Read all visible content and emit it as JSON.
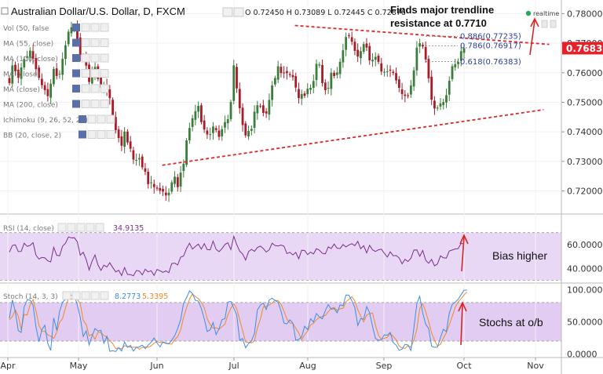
{
  "header": {
    "symbol_title": "Australian Dollar/U.S. Dollar, D, FXCM",
    "ohlc": "O 0.72450 H 0.73089 L 0.72445 C 0.72876",
    "realtime_label": "realtime"
  },
  "indicators": [
    "Vol (50, false",
    "MA (55, close)",
    "MA (100, close)",
    "MA (close)",
    "MA (close)",
    "MA (200, close)",
    "Ichimoku (9, 26, 52, 26)",
    "BB (20, close, 2)"
  ],
  "annotations": {
    "trendline_note": "Finds major trendline\nresistance at 0.7710",
    "rsi_note": "Bias higher",
    "stoch_note": "Stochs at o/b"
  },
  "colors": {
    "up": "#3c7d3c",
    "down": "#a81c2a",
    "trendline": "#e02828",
    "rsi_line": "#7b2f8f",
    "rsi_band": "#e9d8f5",
    "stoch_k": "#3d8ee0",
    "stoch_d": "#f08a24",
    "stoch_band": "#e3ccf2",
    "fib_text": "#2a3f9a",
    "price_tag": "#e8202a",
    "realtime_dot": "#26a65b"
  },
  "chart_data": [
    {
      "type": "candlestick",
      "title": "Australian Dollar/U.S. Dollar, D, FXCM",
      "x_ticks": [
        "Apr",
        "May",
        "Jun",
        "Jul",
        "Aug",
        "Sep",
        "Oct",
        "Nov"
      ],
      "y_ticks": [
        "0.78000",
        "0.77000",
        "0.76000",
        "0.75000",
        "0.74000",
        "0.73000",
        "0.72000"
      ],
      "ylim": [
        0.7135,
        0.7825
      ],
      "last_price": "0.76833",
      "closes": [
        0.7565,
        0.7625,
        0.7605,
        0.7583,
        0.7618,
        0.7647,
        0.7656,
        0.7675,
        0.7648,
        0.7612,
        0.7583,
        0.7558,
        0.7541,
        0.7521,
        0.7563,
        0.7613,
        0.7589,
        0.7597,
        0.7647,
        0.7693,
        0.7739,
        0.7754,
        0.7753,
        0.7714,
        0.7661,
        0.7653,
        0.7624,
        0.7569,
        0.7599,
        0.762,
        0.7579,
        0.7549,
        0.7558,
        0.754,
        0.7514,
        0.7452,
        0.7406,
        0.7379,
        0.7353,
        0.7401,
        0.7364,
        0.7343,
        0.7306,
        0.7305,
        0.7311,
        0.728,
        0.7265,
        0.7223,
        0.7229,
        0.7213,
        0.7208,
        0.7201,
        0.7198,
        0.7185,
        0.7194,
        0.7229,
        0.7248,
        0.7213,
        0.7262,
        0.7292,
        0.7371,
        0.7413,
        0.7446,
        0.747,
        0.7488,
        0.7433,
        0.7408,
        0.7391,
        0.7392,
        0.7418,
        0.7406,
        0.7383,
        0.7409,
        0.7433,
        0.7443,
        0.7501,
        0.7625,
        0.7547,
        0.748,
        0.7423,
        0.7388,
        0.7403,
        0.741,
        0.7468,
        0.749,
        0.7488,
        0.7464,
        0.7462,
        0.7508,
        0.7557,
        0.7582,
        0.7622,
        0.7599,
        0.76,
        0.7599,
        0.7592,
        0.7585,
        0.755,
        0.7514,
        0.7528,
        0.7522,
        0.7546,
        0.7549,
        0.7572,
        0.763,
        0.7628,
        0.7565,
        0.7541,
        0.7549,
        0.76,
        0.7589,
        0.7601,
        0.7637,
        0.7676,
        0.7721,
        0.7724,
        0.7705,
        0.7674,
        0.7655,
        0.7673,
        0.7697,
        0.7685,
        0.7642,
        0.7644,
        0.7654,
        0.7637,
        0.7604,
        0.7603,
        0.7605,
        0.7607,
        0.7599,
        0.7574,
        0.7549,
        0.7528,
        0.7522,
        0.7521,
        0.7557,
        0.7608,
        0.7685,
        0.77,
        0.7689,
        0.7645,
        0.7581,
        0.7509,
        0.7479,
        0.7482,
        0.7496,
        0.7501,
        0.7524,
        0.7573,
        0.7622,
        0.7629,
        0.7637,
        0.7673,
        0.7683
      ],
      "fib_levels": [
        {
          "label": "0.886(0.77235)",
          "price": 0.77235
        },
        {
          "label": "0.786(0.76917)",
          "price": 0.76917
        },
        {
          "label": "0.618(0.76383)",
          "price": 0.76383
        }
      ],
      "trendlines": [
        {
          "name": "resistance",
          "from": [
            0.525,
            0.776
          ],
          "to": [
            0.985,
            0.7696
          ]
        },
        {
          "name": "support",
          "from": [
            0.285,
            0.7287
          ],
          "to": [
            0.975,
            0.7475
          ]
        }
      ]
    },
    {
      "type": "line",
      "title": "RSI (14, close)",
      "value_label": "34.9135",
      "y_ticks": [
        "60.0000",
        "40.0000"
      ],
      "ylim": [
        29,
        81
      ],
      "overbought": 70,
      "oversold": 30,
      "values": [
        53.7,
        59.3,
        59.8,
        54.1,
        54.2,
        61.1,
        58.5,
        59.3,
        61.6,
        51.1,
        47.8,
        49.2,
        48.8,
        46.3,
        45.4,
        57.7,
        51.0,
        50.5,
        58.6,
        61.1,
        66.4,
        65.6,
        65.7,
        62.3,
        51.1,
        53.5,
        47.4,
        38.7,
        46.1,
        51.3,
        42.8,
        38.3,
        42.7,
        41.1,
        44.7,
        40.7,
        37.1,
        38.4,
        34.0,
        40.7,
        34.9,
        34.8,
        33.8,
        38.2,
        37.8,
        34.5,
        39.3,
        37.0,
        38.1,
        34.1,
        39.1,
        38.0,
        36.7,
        37.9,
        36.4,
        44.1,
        44.4,
        42.9,
        49.4,
        50.4,
        56.7,
        61.1,
        56.2,
        58.5,
        60.3,
        56.2,
        60.8,
        55.7,
        55.6,
        62.9,
        56.0,
        54.0,
        56.5,
        60.1,
        61.5,
        55.8,
        66.9,
        60.0,
        54.4,
        52.1,
        47.0,
        54.1,
        56.0,
        54.3,
        57.5,
        58.7,
        56.6,
        53.7,
        55.6,
        61.1,
        59.2,
        58.8,
        59.6,
        58.6,
        52.4,
        53.5,
        51.3,
        53.4,
        48.1,
        55.2,
        55.0,
        51.6,
        53.6,
        52.1,
        56.5,
        55.2,
        52.6,
        52.2,
        58.1,
        56.7,
        60.4,
        57.0,
        56.6,
        60.0,
        58.0,
        59.7,
        60.7,
        59.1,
        62.7,
        56.5,
        59.0,
        53.0,
        59.4,
        55.5,
        54.2,
        55.6,
        56.1,
        52.6,
        49.5,
        53.9,
        50.6,
        50.8,
        48.8,
        43.8,
        47.6,
        45.8,
        48.5,
        55.3,
        55.5,
        50.1,
        55.0,
        46.8,
        44.3,
        47.5,
        42.1,
        43.7,
        50.5,
        48.9,
        48.6,
        54.6,
        55.4,
        56.3,
        56.6,
        61.0,
        60.5
      ]
    },
    {
      "type": "line",
      "title": "Stoch (14, 3, 3)",
      "value_labels": [
        "8.2773",
        "5.3395"
      ],
      "y_ticks": [
        "100.0000",
        "50.0000",
        "0.0000"
      ],
      "ylim": [
        -2,
        108
      ],
      "overbought": 80,
      "oversold": 20,
      "series": [
        {
          "name": "%K",
          "values": [
            55.5,
            84.3,
            65.7,
            36.2,
            33.5,
            73.0,
            84.1,
            84.1,
            75.9,
            42.2,
            19.2,
            37.7,
            44.7,
            16.0,
            5.6,
            56.0,
            36.7,
            66.2,
            80.8,
            84.9,
            91.8,
            91.3,
            92.1,
            76.0,
            57.0,
            27.1,
            35.9,
            14.0,
            28.1,
            39.6,
            35.6,
            36.9,
            16.3,
            27.4,
            4.1,
            4.8,
            3.7,
            9.6,
            4.3,
            18.5,
            10.2,
            13.3,
            4.4,
            10.2,
            10.7,
            13.7,
            8.1,
            13.7,
            18.1,
            24.8,
            17.1,
            11.0,
            18.8,
            17.1,
            15.7,
            21.5,
            28.7,
            39.7,
            53.5,
            78.9,
            87.7,
            98.2,
            94.1,
            83.3,
            82.3,
            70.9,
            54.3,
            34.9,
            37.6,
            48.9,
            30.1,
            39.2,
            53.5,
            54.8,
            80.8,
            81.8,
            71.2,
            60.7,
            21.1,
            24.0,
            9.5,
            16.1,
            20.4,
            32.0,
            68.5,
            76.0,
            79.1,
            69.1,
            83.9,
            86.9,
            83.2,
            80.4,
            66.8,
            48.0,
            46.8,
            53.2,
            47.9,
            21.4,
            22.6,
            26.4,
            43.2,
            37.8,
            54.8,
            49.6,
            62.9,
            57.5,
            54.7,
            67.4,
            76.9,
            69.6,
            70.7,
            64.1,
            76.4,
            75.1,
            91.7,
            91.6,
            82.6,
            72.6,
            44.3,
            55.1,
            54.1,
            73.7,
            64.5,
            42.8,
            24.1,
            21.1,
            22.3,
            29.8,
            29.0,
            33.6,
            17.5,
            13.5,
            5.7,
            7.5,
            14.8,
            14.0,
            5.2,
            40.0,
            78.4,
            89.8,
            63.8,
            46.2,
            39.8,
            11.8,
            10.2,
            10.6,
            25.5,
            38.5,
            34.5,
            63.5,
            77.0,
            80.6,
            85.0,
            92.3,
            99.3,
            99.4
          ]
        },
        {
          "name": "%D",
          "values": [
            52.7,
            58.4,
            68.5,
            58.7,
            37.6,
            61.6,
            60.5,
            76.3,
            84.8,
            67.5,
            44.4,
            35.7,
            35.3,
            29.6,
            27.8,
            24.2,
            33.5,
            48.9,
            55.2,
            71.9,
            87.0,
            85.5,
            88.3,
            84.8,
            78.6,
            52.4,
            45.8,
            28.2,
            30.6,
            22.9,
            33.9,
            33.3,
            28.4,
            26.7,
            20.8,
            15.9,
            8.2,
            9.3,
            7.7,
            12.8,
            11.8,
            10.4,
            10.3,
            10.7,
            7.4,
            10.0,
            10.9,
            10.3,
            12.6,
            17.0,
            19.2,
            17.8,
            17.9,
            16.2,
            15.7,
            15.2,
            22.5,
            26.8,
            37.5,
            56.8,
            71.8,
            85.4,
            93.4,
            89.4,
            86.3,
            80.5,
            72.0,
            54.8,
            45.6,
            40.0,
            40.8,
            38.6,
            42.4,
            46.4,
            60.6,
            71.3,
            77.8,
            70.3,
            53.0,
            36.3,
            18.5,
            18.3,
            17.1,
            20.4,
            40.3,
            54.2,
            73.6,
            73.6,
            76.3,
            79.3,
            83.3,
            82.9,
            77.3,
            66.4,
            54.3,
            48.1,
            47.7,
            40.1,
            32.7,
            22.0,
            29.8,
            35.6,
            45.2,
            47.5,
            53.3,
            56.7,
            58.6,
            59.7,
            66.0,
            71.0,
            72.4,
            67.7,
            70.2,
            71.1,
            81.2,
            85.0,
            89.0,
            82.7,
            68.9,
            58.8,
            49.9,
            60.6,
            62.6,
            63.7,
            44.7,
            29.4,
            22.6,
            24.3,
            26.0,
            31.6,
            27.4,
            21.6,
            12.2,
            9.4,
            8.4,
            13.2,
            10.3,
            21.2,
            38.1,
            70.9,
            78.3,
            65.9,
            50.6,
            32.7,
            21.4,
            12.3,
            15.0,
            24.6,
            33.1,
            45.2,
            58.8,
            72.8,
            80.7,
            86.1,
            91.9,
            96.6
          ]
        }
      ]
    }
  ]
}
